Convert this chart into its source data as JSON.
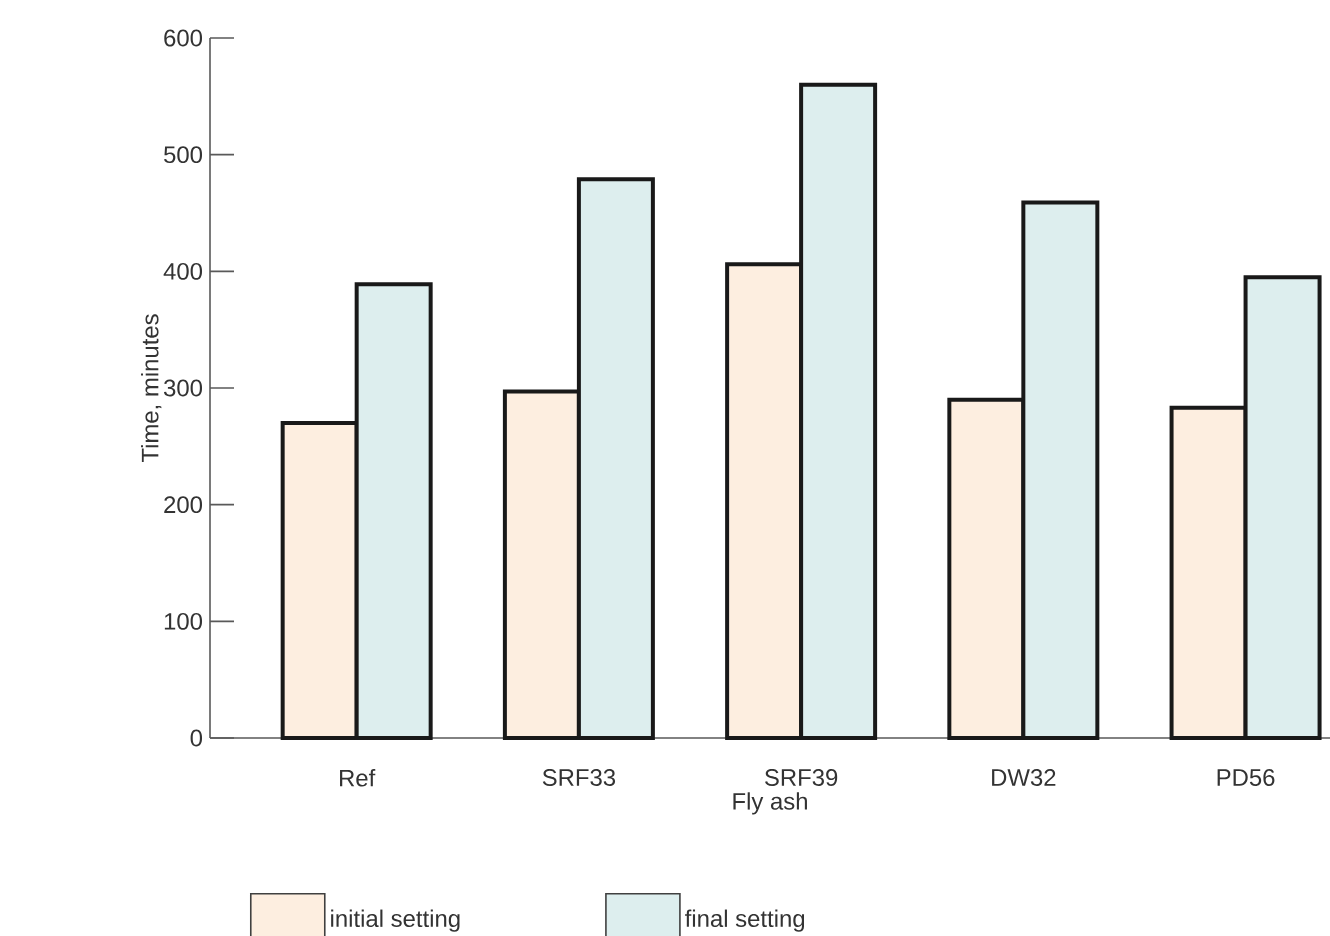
{
  "chart_data": {
    "type": "bar",
    "xlabel": "Fly ash",
    "ylabel": "Time, minutes",
    "categories": [
      "Ref",
      "SRF33",
      "SRF39",
      "DW32",
      "PD56"
    ],
    "series": [
      {
        "name": "initial setting",
        "color": "#fdeee0",
        "values": [
          270,
          297,
          406,
          290,
          283
        ]
      },
      {
        "name": "final setting",
        "color": "#ddeeee",
        "values": [
          389,
          479,
          560,
          459,
          395
        ]
      }
    ],
    "ylim": [
      0,
      600
    ],
    "yticks": [
      0,
      100,
      200,
      300,
      400,
      500,
      600
    ],
    "grid": false,
    "legend": "bottom"
  }
}
